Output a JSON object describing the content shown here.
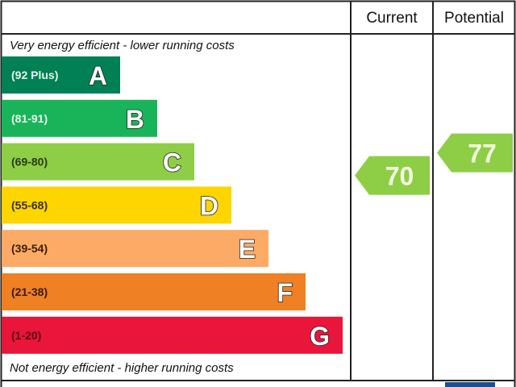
{
  "chart_data": {
    "type": "bar",
    "headers": {
      "current": "Current",
      "potential": "Potential"
    },
    "top_note": "Very energy efficient - lower running costs",
    "bottom_note": "Not energy efficient - higher running costs",
    "bands": [
      {
        "letter": "A",
        "range": "(92 Plus)",
        "min": 92,
        "max": 100,
        "color": "#008054",
        "range_color": "#e8f5ec"
      },
      {
        "letter": "B",
        "range": "(81-91)",
        "min": 81,
        "max": 91,
        "color": "#19b459",
        "range_color": "#e8f5ec"
      },
      {
        "letter": "C",
        "range": "(69-80)",
        "min": 69,
        "max": 80,
        "color": "#8dce46",
        "range_color": "#2a3a10"
      },
      {
        "letter": "D",
        "range": "(55-68)",
        "min": 55,
        "max": 68,
        "color": "#ffd500",
        "range_color": "#3a3000"
      },
      {
        "letter": "E",
        "range": "(39-54)",
        "min": 39,
        "max": 54,
        "color": "#fcaa65",
        "range_color": "#3a2000"
      },
      {
        "letter": "F",
        "range": "(21-38)",
        "min": 21,
        "max": 38,
        "color": "#ef8023",
        "range_color": "#3a1a00"
      },
      {
        "letter": "G",
        "range": "(1-20)",
        "min": 1,
        "max": 20,
        "color": "#e9153b",
        "range_color": "#5a0010"
      }
    ],
    "current": {
      "value": 70,
      "band": "C"
    },
    "potential": {
      "value": 77,
      "band": "C"
    },
    "arrow_color": "#8dce46"
  }
}
